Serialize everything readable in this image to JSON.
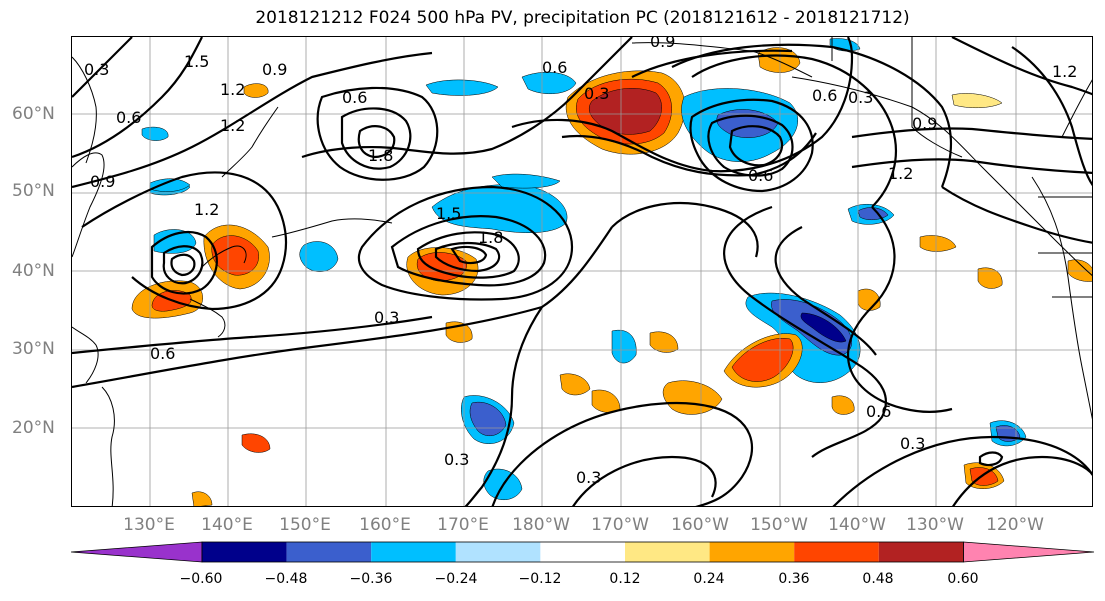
{
  "title": "2018121212 F024 500 hPa PV, precipitation PC (2018121612 - 2018121712)",
  "lat_labels": [
    "60°N",
    "50°N",
    "40°N",
    "30°N",
    "20°N"
  ],
  "lon_labels": [
    "130°E",
    "140°E",
    "150°E",
    "160°E",
    "170°E",
    "180°W",
    "170°W",
    "160°W",
    "150°W",
    "140°W",
    "130°W",
    "120°W"
  ],
  "contour_labels": [
    "0.3",
    "0.6",
    "0.9",
    "1.2",
    "1.5",
    "1.8",
    "1.2",
    "1.5",
    "1.8",
    "0.3",
    "0.6",
    "0.9",
    "1.2",
    "0.6",
    "0.3",
    "0.3",
    "0.6",
    "0.3",
    "0.3",
    "0.6",
    "0.9",
    "1.2",
    "0.3",
    "0.9",
    "0.6",
    "1.2",
    "0.6"
  ],
  "colorbar": {
    "ticks": [
      "−0.60",
      "−0.48",
      "−0.36",
      "−0.24",
      "−0.12",
      "0.12",
      "0.24",
      "0.36",
      "0.48",
      "0.60"
    ],
    "colors": [
      "#9932cc",
      "#00008b",
      "#3b5fcd",
      "#00bfff",
      "#b0e2ff",
      "#ffffff",
      "#ffe884",
      "#ffa500",
      "#ff4500",
      "#b22222",
      "#ff83b0"
    ]
  }
}
